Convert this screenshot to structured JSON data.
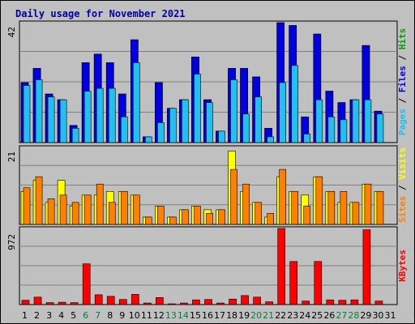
{
  "chart_data": [
    {
      "type": "bar",
      "title": "Daily usage for November 2021",
      "ylabel": "Pages / Files / Hits",
      "ytick": "42",
      "ylim": [
        0,
        42
      ],
      "x": [
        "1",
        "2",
        "3",
        "4",
        "5",
        "6",
        "7",
        "8",
        "9",
        "10",
        "11",
        "12",
        "13",
        "14",
        "15",
        "16",
        "17",
        "18",
        "19",
        "20",
        "21",
        "22",
        "23",
        "24",
        "25",
        "26",
        "27",
        "28",
        "29",
        "30",
        "31"
      ],
      "weekend_days": [
        "6",
        "7",
        "13",
        "14",
        "20",
        "21",
        "27",
        "28"
      ],
      "series": [
        {
          "name": "Hits",
          "color": "#00a000",
          "values": [
            21,
            26,
            17,
            15,
            6,
            28,
            31,
            28,
            17,
            36,
            2,
            21,
            12,
            15,
            30,
            15,
            4,
            26,
            26,
            23,
            5,
            42,
            41,
            9,
            38,
            18,
            14,
            15,
            34,
            11,
            0
          ]
        },
        {
          "name": "Files",
          "color": "#0000e0",
          "values": [
            21,
            26,
            17,
            15,
            6,
            28,
            31,
            28,
            17,
            36,
            2,
            21,
            12,
            15,
            30,
            15,
            4,
            26,
            26,
            23,
            5,
            42,
            41,
            9,
            38,
            18,
            14,
            15,
            34,
            11,
            0
          ]
        },
        {
          "name": "Pages",
          "color": "#20c0f0",
          "values": [
            20,
            22,
            16,
            15,
            5,
            18,
            19,
            19,
            9,
            28,
            2,
            7,
            12,
            15,
            24,
            14,
            4,
            22,
            10,
            16,
            2,
            21,
            27,
            3,
            15,
            9,
            8,
            15,
            15,
            10,
            0
          ]
        }
      ]
    },
    {
      "type": "bar",
      "ylabel": "Sites / Visits",
      "ytick": "21",
      "ylim": [
        0,
        21
      ],
      "series": [
        {
          "name": "Visits",
          "color": "#ffff00",
          "values": [
            9,
            12,
            6,
            12,
            5,
            8,
            8,
            9,
            9,
            8,
            2,
            5,
            2,
            4,
            5,
            4,
            4,
            20,
            9,
            6,
            2,
            13,
            9,
            8,
            13,
            9,
            6,
            6,
            11,
            9,
            0
          ]
        },
        {
          "name": "Sites",
          "color": "#ff8000",
          "values": [
            10,
            13,
            7,
            8,
            6,
            8,
            11,
            6,
            9,
            8,
            2,
            5,
            2,
            4,
            5,
            3,
            4,
            15,
            11,
            6,
            3,
            15,
            9,
            5,
            13,
            9,
            9,
            6,
            11,
            9,
            0
          ]
        }
      ]
    },
    {
      "type": "bar",
      "ylabel": "KBytes",
      "ytick": "972",
      "ylim": [
        0,
        972
      ],
      "series": [
        {
          "name": "KBytes",
          "color": "#ff0000",
          "values": [
            55,
            95,
            25,
            30,
            25,
            520,
            125,
            105,
            65,
            130,
            20,
            90,
            10,
            20,
            60,
            65,
            20,
            70,
            115,
            95,
            35,
            972,
            550,
            45,
            550,
            60,
            55,
            60,
            955,
            45,
            0
          ]
        }
      ]
    }
  ]
}
